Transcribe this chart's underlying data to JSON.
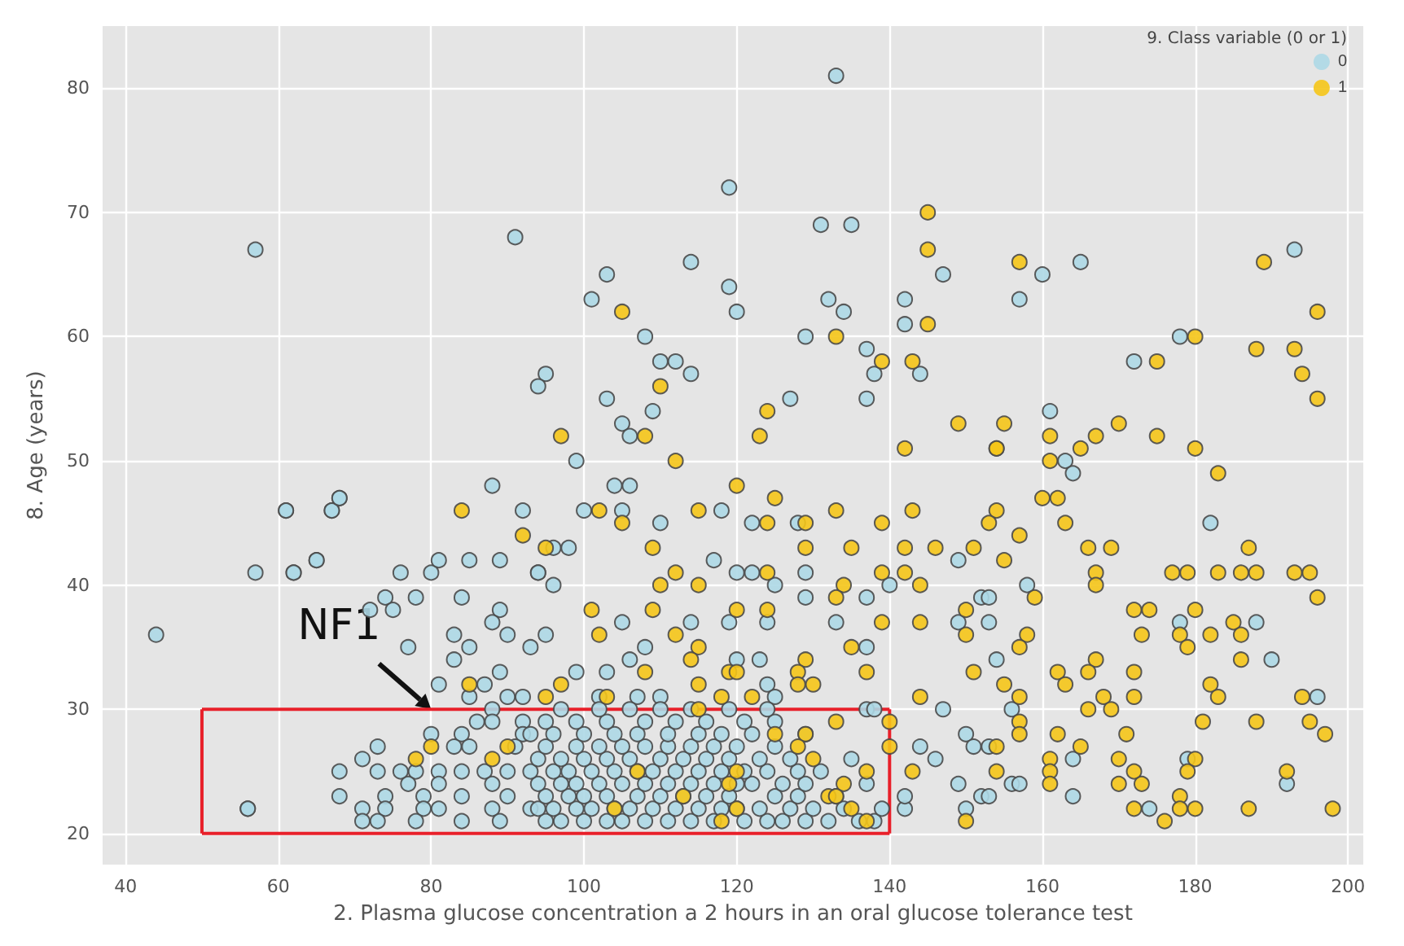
{
  "chart_data": {
    "type": "scatter",
    "xlabel": "2. Plasma glucose concentration a 2 hours in an oral glucose tolerance test",
    "ylabel": "8. Age (years)",
    "legend_title": "9. Class variable (0 or 1)",
    "legend": "top right",
    "grid": true,
    "marker": "circle",
    "xlim": [
      37,
      202
    ],
    "xticks": [
      40,
      60,
      80,
      100,
      120,
      140,
      160,
      180,
      200
    ],
    "ylim": [
      17.5,
      85
    ],
    "yticks": [
      20,
      30,
      40,
      50,
      60,
      70,
      80
    ],
    "annotations": [
      {
        "text": "NF1",
        "x": 80,
        "y": 30
      }
    ],
    "series": [
      {
        "name": "0",
        "color": "#add8e6",
        "x": [
          44,
          56,
          57,
          57,
          61,
          62,
          65,
          67,
          68,
          133,
          119,
          91,
          131,
          135,
          114,
          103,
          101,
          119,
          120,
          132,
          134,
          142,
          147,
          142,
          108,
          129,
          137,
          110,
          112,
          114,
          138,
          144,
          95,
          94,
          103,
          127,
          137,
          109,
          105,
          106,
          160,
          165,
          157,
          193,
          178,
          172,
          161,
          163,
          164,
          182,
          149,
          158,
          152,
          153,
          149,
          153,
          178,
          188,
          154,
          190,
          196,
          156,
          150,
          151,
          153,
          164,
          179,
          156,
          157,
          152,
          153,
          164,
          150,
          174,
          192,
          61,
          67,
          68,
          88,
          92,
          62,
          65,
          76,
          80,
          81,
          85,
          89,
          94,
          74,
          78,
          84,
          72,
          75,
          89,
          88,
          83,
          90,
          93,
          77,
          85,
          83,
          89,
          81,
          87,
          85,
          90,
          92,
          88,
          86,
          88,
          92,
          80,
          84,
          92,
          73,
          83,
          85,
          91,
          71,
          68,
          73,
          76,
          78,
          81,
          84,
          87,
          90,
          77,
          81,
          88,
          68,
          74,
          79,
          84,
          90,
          56,
          71,
          74,
          79,
          81,
          88,
          93,
          71,
          73,
          78,
          84,
          89,
          99,
          104,
          106,
          100,
          105,
          110,
          118,
          122,
          128,
          96,
          98,
          117,
          94,
          120,
          122,
          129,
          96,
          125,
          140,
          129,
          137,
          105,
          114,
          119,
          124,
          133,
          95,
          108,
          106,
          120,
          123,
          137,
          99,
          103,
          124,
          102,
          107,
          110,
          125,
          137,
          147,
          95,
          97,
          100,
          103,
          105,
          108,
          111,
          114,
          117,
          121,
          124,
          126,
          129,
          132,
          136,
          138,
          94,
          96,
          99,
          101,
          104,
          106,
          109,
          112,
          115,
          118,
          120,
          123,
          127,
          130,
          134,
          139,
          95,
          98,
          100,
          103,
          107,
          110,
          113,
          116,
          119,
          125,
          128,
          133,
          94,
          97,
          99,
          102,
          105,
          108,
          111,
          114,
          117,
          120,
          122,
          126,
          129,
          137,
          93,
          96,
          98,
          101,
          104,
          107,
          109,
          112,
          115,
          118,
          121,
          124,
          128,
          131,
          94,
          97,
          100,
          103,
          106,
          110,
          113,
          116,
          119,
          123,
          127,
          135,
          95,
          99,
          102,
          105,
          108,
          111,
          114,
          117,
          120,
          125,
          93,
          96,
          100,
          104,
          107,
          111,
          115,
          118,
          122,
          129,
          95,
          99,
          103,
          108,
          112,
          116,
          121,
          125,
          97,
          102,
          106,
          110,
          114,
          119,
          124,
          138,
          142,
          142,
          149,
          144,
          146
        ],
        "values": [
          36,
          22,
          67,
          41,
          46,
          41,
          42,
          46,
          47,
          81,
          72,
          68,
          69,
          69,
          66,
          65,
          63,
          64,
          62,
          63,
          62,
          63,
          65,
          61,
          60,
          60,
          59,
          58,
          58,
          57,
          57,
          57,
          57,
          56,
          55,
          55,
          55,
          54,
          53,
          52,
          65,
          66,
          63,
          67,
          60,
          58,
          54,
          50,
          49,
          45,
          42,
          40,
          39,
          39,
          37,
          37,
          37,
          37,
          34,
          34,
          31,
          30,
          28,
          27,
          27,
          26,
          26,
          24,
          24,
          23,
          23,
          23,
          22,
          22,
          24,
          46,
          46,
          47,
          48,
          46,
          41,
          42,
          41,
          41,
          42,
          42,
          42,
          41,
          39,
          39,
          39,
          38,
          38,
          38,
          37,
          36,
          36,
          35,
          35,
          35,
          34,
          33,
          32,
          32,
          31,
          31,
          31,
          30,
          29,
          29,
          29,
          28,
          28,
          28,
          27,
          27,
          27,
          27,
          26,
          25,
          25,
          25,
          25,
          25,
          25,
          25,
          25,
          24,
          24,
          24,
          23,
          23,
          23,
          23,
          23,
          22,
          22,
          22,
          22,
          22,
          22,
          22,
          21,
          21,
          21,
          21,
          21,
          50,
          48,
          48,
          46,
          46,
          45,
          46,
          45,
          45,
          43,
          43,
          42,
          41,
          41,
          41,
          41,
          40,
          40,
          40,
          39,
          39,
          37,
          37,
          37,
          37,
          37,
          36,
          35,
          34,
          34,
          34,
          35,
          33,
          33,
          32,
          31,
          31,
          31,
          31,
          30,
          30,
          21,
          21,
          21,
          21,
          21,
          21,
          21,
          21,
          21,
          21,
          21,
          21,
          21,
          21,
          21,
          21,
          22,
          22,
          22,
          22,
          22,
          22,
          22,
          22,
          22,
          22,
          22,
          22,
          22,
          22,
          22,
          22,
          23,
          23,
          23,
          23,
          23,
          23,
          23,
          23,
          23,
          23,
          23,
          23,
          24,
          24,
          24,
          24,
          24,
          24,
          24,
          24,
          24,
          24,
          24,
          24,
          24,
          24,
          25,
          25,
          25,
          25,
          25,
          25,
          25,
          25,
          25,
          25,
          25,
          25,
          25,
          25,
          26,
          26,
          26,
          26,
          26,
          26,
          26,
          26,
          26,
          26,
          26,
          26,
          27,
          27,
          27,
          27,
          27,
          27,
          27,
          27,
          27,
          27,
          28,
          28,
          28,
          28,
          28,
          28,
          28,
          28,
          28,
          28,
          29,
          29,
          29,
          29,
          29,
          29,
          29,
          29,
          30,
          30,
          30,
          30,
          30,
          30,
          30,
          30,
          22,
          23,
          24,
          27,
          26
        ]
      },
      {
        "name": "1",
        "color": "#f5c518",
        "x": [
          145,
          145,
          105,
          145,
          133,
          139,
          143,
          110,
          124,
          149,
          97,
          108,
          123,
          142,
          157,
          189,
          196,
          180,
          188,
          193,
          175,
          194,
          196,
          170,
          155,
          161,
          167,
          175,
          154,
          165,
          180,
          154,
          161,
          183,
          160,
          162,
          154,
          153,
          163,
          157,
          151,
          166,
          169,
          187,
          155,
          167,
          167,
          177,
          179,
          183,
          186,
          188,
          193,
          195,
          196,
          159,
          150,
          172,
          174,
          180,
          185,
          150,
          158,
          173,
          178,
          182,
          186,
          179,
          157,
          167,
          186,
          151,
          162,
          166,
          172,
          155,
          163,
          182,
          157,
          168,
          172,
          183,
          194,
          166,
          169,
          157,
          181,
          188,
          195,
          157,
          162,
          171,
          197,
          165,
          154,
          161,
          170,
          180,
          154,
          161,
          172,
          179,
          192,
          161,
          170,
          173,
          178,
          172,
          178,
          180,
          187,
          198,
          176,
          150,
          84,
          92,
          85,
          80,
          78,
          88,
          90,
          112,
          120,
          125,
          102,
          115,
          133,
          143,
          105,
          124,
          129,
          139,
          95,
          109,
          129,
          135,
          142,
          146,
          112,
          124,
          139,
          142,
          110,
          115,
          134,
          144,
          101,
          109,
          120,
          124,
          133,
          139,
          144,
          102,
          112,
          115,
          135,
          114,
          129,
          108,
          119,
          120,
          128,
          137,
          97,
          115,
          128,
          130,
          95,
          103,
          118,
          122,
          144,
          115,
          133,
          140,
          125,
          129,
          128,
          130,
          140,
          143,
          137,
          120,
          107,
          119,
          134,
          113,
          132,
          133,
          104,
          120,
          135,
          118,
          137
        ],
        "values": [
          70,
          67,
          62,
          61,
          60,
          58,
          58,
          56,
          54,
          53,
          52,
          52,
          52,
          51,
          66,
          66,
          62,
          60,
          59,
          59,
          58,
          57,
          55,
          53,
          53,
          52,
          52,
          52,
          51,
          51,
          51,
          51,
          50,
          49,
          47,
          47,
          46,
          45,
          45,
          44,
          43,
          43,
          43,
          43,
          42,
          41,
          40,
          41,
          41,
          41,
          41,
          41,
          41,
          41,
          39,
          39,
          38,
          38,
          38,
          38,
          37,
          36,
          36,
          36,
          36,
          36,
          36,
          35,
          35,
          34,
          34,
          33,
          33,
          33,
          33,
          32,
          32,
          32,
          31,
          31,
          31,
          31,
          31,
          30,
          30,
          29,
          29,
          29,
          29,
          28,
          28,
          28,
          28,
          27,
          27,
          26,
          26,
          26,
          25,
          25,
          25,
          25,
          25,
          24,
          24,
          24,
          23,
          22,
          22,
          22,
          22,
          22,
          21,
          21,
          46,
          44,
          32,
          27,
          26,
          26,
          27,
          50,
          48,
          47,
          46,
          46,
          46,
          46,
          45,
          45,
          45,
          45,
          43,
          43,
          43,
          43,
          43,
          43,
          41,
          41,
          41,
          41,
          40,
          40,
          40,
          40,
          38,
          38,
          38,
          38,
          39,
          37,
          37,
          36,
          36,
          35,
          35,
          34,
          34,
          33,
          33,
          33,
          33,
          33,
          32,
          32,
          32,
          32,
          31,
          31,
          31,
          31,
          31,
          30,
          29,
          29,
          28,
          28,
          27,
          26,
          27,
          25,
          25,
          25,
          25,
          24,
          24,
          23,
          23,
          23,
          22,
          22,
          22,
          21,
          21
        ]
      },
      {
        "color": "#e8202a",
        "marker": "none",
        "type": "line",
        "x": [
          50,
          140
        ],
        "values": [
          30,
          30
        ]
      },
      {
        "color": "#e8202a",
        "marker": "none",
        "type": "line",
        "x": [
          50,
          140
        ],
        "values": [
          20,
          20
        ]
      },
      {
        "color": "#e8202a",
        "marker": "none",
        "type": "line",
        "x": [
          50,
          50
        ],
        "values": [
          20,
          30
        ]
      },
      {
        "color": "#e8202a",
        "marker": "none",
        "type": "line",
        "x": [
          140,
          140
        ],
        "values": [
          20,
          30
        ]
      }
    ]
  }
}
